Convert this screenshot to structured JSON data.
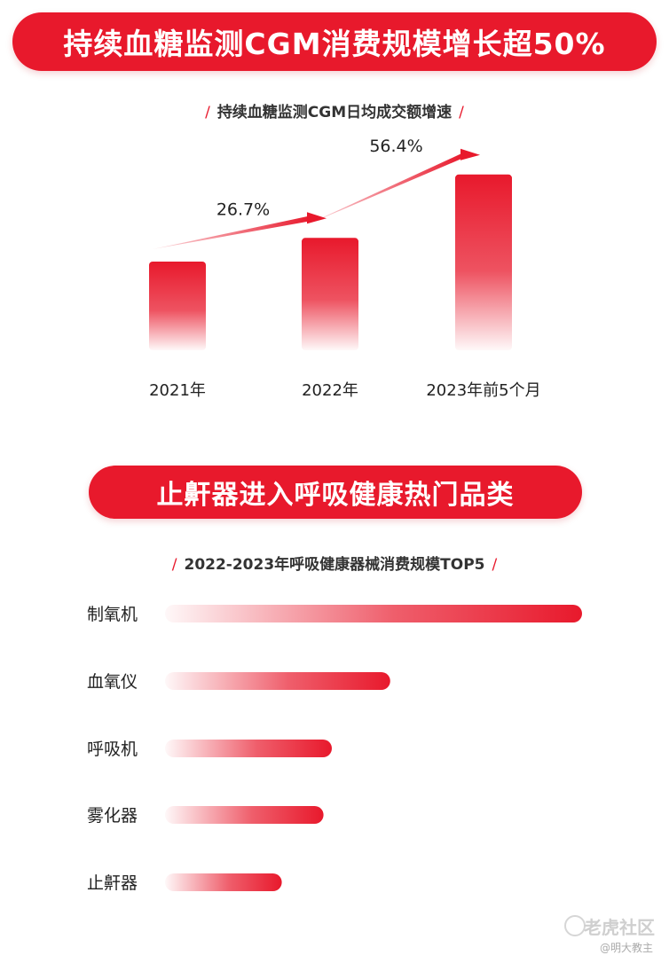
{
  "banner_1": "持续血糖监测CGM消费规模增长超50%",
  "subtitle_1": "持续血糖监测CGM日均成交额增速",
  "banner_2": "止鼾器进入呼吸健康热门品类",
  "subtitle_2": "2022-2023年呼吸健康器械消费规模TOP5",
  "watermark": "老虎社区",
  "watermark_sub": "@明大教主",
  "colors": {
    "accent": "#e8192c"
  },
  "chart_data": [
    {
      "type": "bar",
      "title": "持续血糖监测CGM日均成交额增速",
      "categories": [
        "2021年",
        "2022年",
        "2023年前5个月"
      ],
      "values": [
        100,
        126.7,
        198.2
      ],
      "annotations": [
        {
          "label": "26.7%",
          "from": "2021年",
          "to": "2022年"
        },
        {
          "label": "56.4%",
          "from": "2022年",
          "to": "2023年前5个月"
        }
      ],
      "ylim": [
        0,
        200
      ]
    },
    {
      "type": "bar",
      "orientation": "horizontal",
      "title": "2022-2023年呼吸健康器械消费规模TOP5",
      "categories": [
        "制氧机",
        "血氧仪",
        "呼吸机",
        "雾化器",
        "止鼾器"
      ],
      "values": [
        100,
        54,
        40,
        38,
        28
      ],
      "xlim": [
        0,
        100
      ]
    }
  ]
}
